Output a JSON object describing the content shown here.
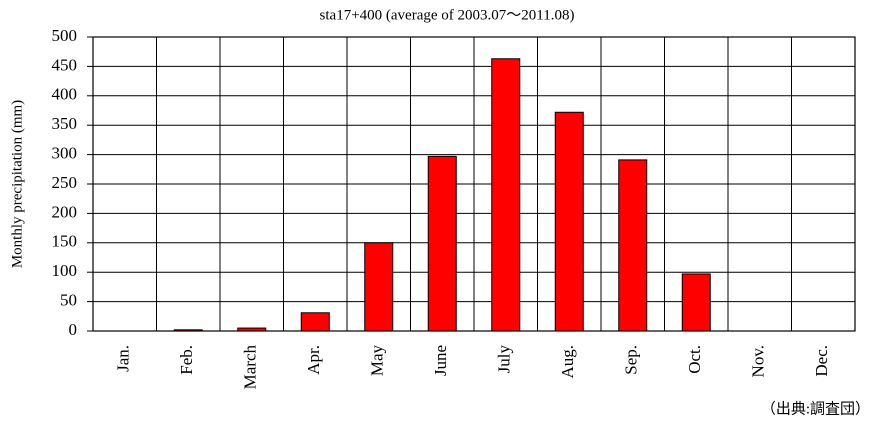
{
  "chart_data": {
    "type": "bar",
    "title": "sta17+400 (average of 2003.07～2011.08)",
    "y_label": "Monthly precipitation (mm)",
    "source": "（出典:調査団）",
    "categories": [
      "Jan.",
      "Feb.",
      "March",
      "Apr.",
      "May",
      "June",
      "July",
      "Aug.",
      "Sep.",
      "Oct.",
      "Nov.",
      "Dec."
    ],
    "values": [
      0,
      2,
      5,
      31,
      150,
      297,
      463,
      372,
      291,
      97,
      0,
      0
    ],
    "color": "#ff0000",
    "ylim": [
      0,
      500
    ],
    "yticks": [
      0,
      50,
      100,
      150,
      200,
      250,
      300,
      350,
      400,
      450,
      500
    ],
    "grid": true
  }
}
